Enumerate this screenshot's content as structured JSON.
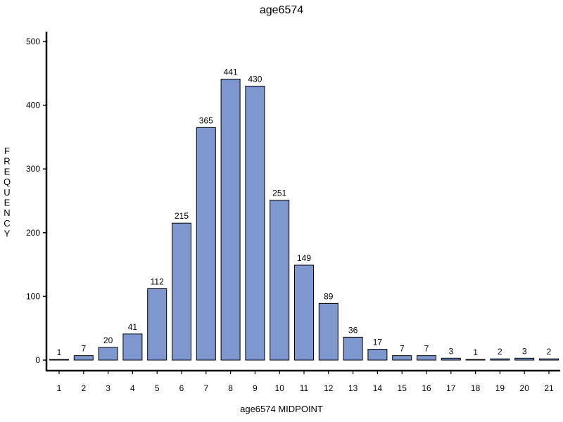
{
  "chart_data": {
    "type": "bar",
    "title": "age6574",
    "xlabel": "age6574 MIDPOINT",
    "ylabel": "FREQUENCY",
    "categories": [
      "1",
      "2",
      "3",
      "4",
      "5",
      "6",
      "7",
      "8",
      "9",
      "10",
      "11",
      "12",
      "13",
      "14",
      "15",
      "16",
      "17",
      "18",
      "19",
      "20",
      "21"
    ],
    "values": [
      1,
      7,
      20,
      41,
      112,
      215,
      365,
      441,
      430,
      251,
      149,
      89,
      36,
      17,
      7,
      7,
      3,
      1,
      2,
      3,
      2
    ],
    "data_labels": [
      "1",
      "7",
      "20",
      "41",
      "112",
      "215",
      "365",
      "441",
      "430",
      "251",
      "149",
      "89",
      "36",
      "17",
      "7",
      "7",
      "3",
      "1",
      "2",
      "3",
      "2"
    ],
    "yticks": [
      0,
      100,
      200,
      300,
      400,
      500
    ],
    "ylim": [
      0,
      515
    ],
    "grid": false,
    "bar_color": "#7f97cf"
  }
}
